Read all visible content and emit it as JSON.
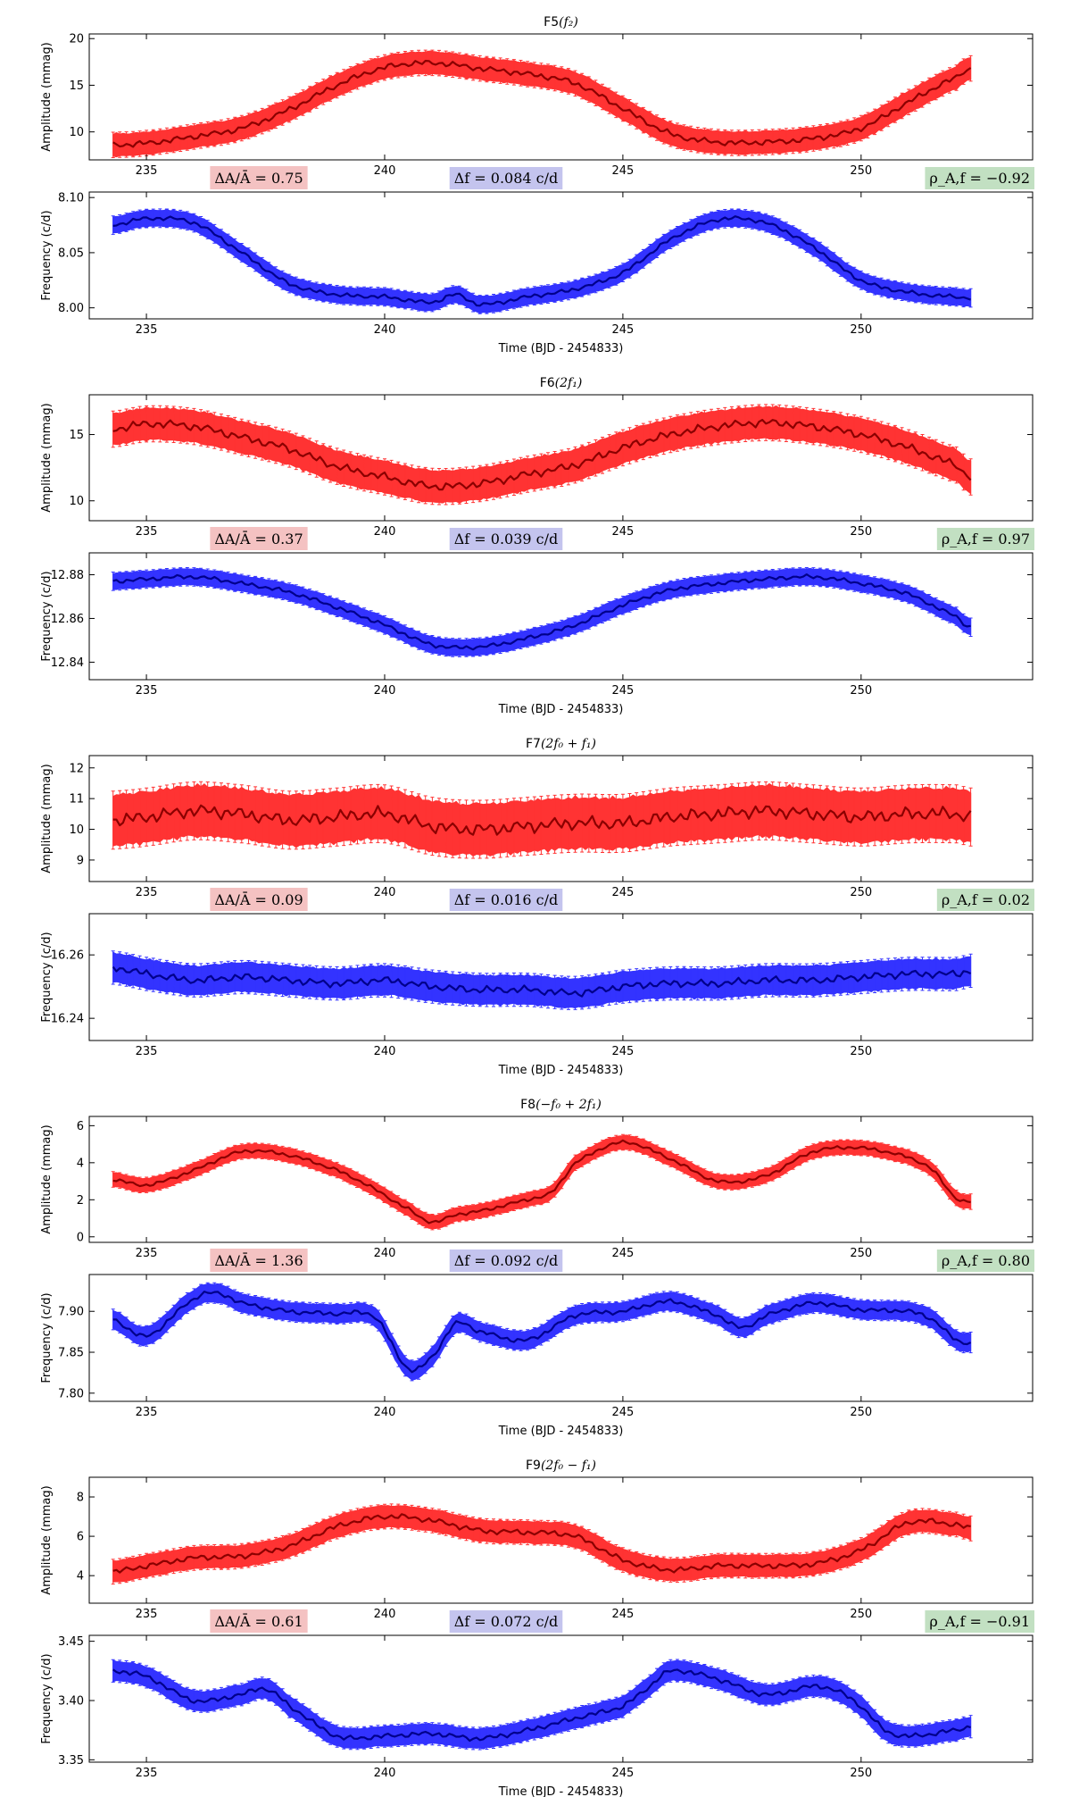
{
  "figure": {
    "xlabel": "Time (BJD - 2454833)",
    "xlim": [
      233.8,
      253.6
    ],
    "xticks": [
      235,
      240,
      245,
      250
    ],
    "colors": {
      "amplitude": "#ff3333",
      "amplitude_line": "#8b0000",
      "frequency": "#3333ff",
      "frequency_line": "#00008b",
      "box_amp": "#f4c2c2",
      "box_freq": "#c4c4ee",
      "box_rho": "#c2e0c2"
    }
  },
  "chart_data": [
    {
      "type": "line",
      "title_main": "F5",
      "title_sub": "(f₂)",
      "stat_amp": "ΔA/Ā = 0.75",
      "stat_freq": "Δf = 0.084 c/d",
      "stat_rho": "ρ_A,f = −0.92",
      "amplitude": {
        "ylabel": "Amplitude (mmag)",
        "ylim": [
          7,
          20.5
        ],
        "yticks": [
          "10",
          "15",
          "20"
        ],
        "ytick_values": [
          10,
          15,
          20
        ],
        "band": 1.3,
        "x": [
          234.3,
          235,
          236,
          237,
          238,
          239,
          240,
          241,
          242,
          243,
          244,
          245,
          246,
          247,
          248,
          249,
          250,
          251,
          252,
          252.3
        ],
        "y": [
          8.6,
          8.8,
          9.5,
          10.4,
          12.4,
          15.0,
          16.9,
          17.4,
          16.8,
          16.2,
          15.2,
          12.5,
          9.8,
          8.9,
          8.9,
          9.3,
          10.4,
          13.2,
          15.8,
          16.8
        ]
      },
      "frequency": {
        "ylabel": "Frequency (c/d)",
        "ylim": [
          7.99,
          8.105
        ],
        "yticks": [
          "8.00",
          "8.05",
          "8.10"
        ],
        "ytick_values": [
          8.0,
          8.05,
          8.1
        ],
        "band": 0.008,
        "x": [
          234.3,
          235,
          236,
          237,
          238,
          239,
          240,
          240.5,
          241,
          241.5,
          242,
          243,
          244,
          245,
          246,
          247,
          248,
          249,
          250,
          251,
          252,
          252.3
        ],
        "y": [
          8.075,
          8.081,
          8.077,
          8.05,
          8.022,
          8.012,
          8.01,
          8.007,
          8.005,
          8.012,
          8.003,
          8.01,
          8.017,
          8.032,
          8.062,
          8.08,
          8.077,
          8.055,
          8.025,
          8.014,
          8.01,
          8.009
        ]
      }
    },
    {
      "type": "line",
      "title_main": "F6",
      "title_sub": "(2f₁)",
      "stat_amp": "ΔA/Ā = 0.37",
      "stat_freq": "Δf = 0.039 c/d",
      "stat_rho": "ρ_A,f = 0.97",
      "amplitude": {
        "ylabel": "Amplitude (mmag)",
        "ylim": [
          8.5,
          18
        ],
        "yticks": [
          "10",
          "15"
        ],
        "ytick_values": [
          10,
          15
        ],
        "band": 1.3,
        "x": [
          234.3,
          235,
          236,
          237,
          238,
          239,
          240,
          241,
          242,
          243,
          244,
          245,
          246,
          247,
          248,
          249,
          250,
          251,
          252,
          252.3
        ],
        "y": [
          15.4,
          15.8,
          15.6,
          14.8,
          13.9,
          12.6,
          11.8,
          11.1,
          11.3,
          12.0,
          12.7,
          14.0,
          15.0,
          15.6,
          15.9,
          15.6,
          15.0,
          14.0,
          12.7,
          11.8
        ]
      },
      "frequency": {
        "ylabel": "Frequency (c/d)",
        "ylim": [
          12.832,
          12.89
        ],
        "yticks": [
          "12.84",
          "12.86",
          "12.88"
        ],
        "ytick_values": [
          12.84,
          12.86,
          12.88
        ],
        "band": 0.004,
        "x": [
          234.3,
          235,
          236,
          237,
          238,
          239,
          240,
          241,
          242,
          243,
          244,
          245,
          246,
          247,
          248,
          249,
          250,
          251,
          252,
          252.3
        ],
        "y": [
          12.877,
          12.878,
          12.879,
          12.876,
          12.872,
          12.865,
          12.857,
          12.848,
          12.847,
          12.851,
          12.857,
          12.866,
          12.873,
          12.876,
          12.878,
          12.879,
          12.876,
          12.871,
          12.861,
          12.856
        ]
      }
    },
    {
      "type": "line",
      "title_main": "F7",
      "title_sub": "(2f₀ + f₁)",
      "stat_amp": "ΔA/Ā = 0.09",
      "stat_freq": "Δf = 0.016 c/d",
      "stat_rho": "ρ_A,f = 0.02",
      "amplitude": {
        "ylabel": "Amplitude (mmag)",
        "ylim": [
          8.3,
          12.4
        ],
        "yticks": [
          "9",
          "10",
          "11",
          "12"
        ],
        "ytick_values": [
          9,
          10,
          11,
          12
        ],
        "band": 0.9,
        "x": [
          234.3,
          235,
          236,
          237,
          238,
          239,
          240,
          241,
          242,
          243,
          244,
          245,
          246,
          247,
          248,
          249,
          250,
          251,
          252,
          252.3
        ],
        "y": [
          10.3,
          10.4,
          10.6,
          10.5,
          10.3,
          10.4,
          10.5,
          10.1,
          10.0,
          10.1,
          10.2,
          10.2,
          10.4,
          10.5,
          10.6,
          10.5,
          10.4,
          10.5,
          10.5,
          10.4
        ]
      },
      "frequency": {
        "ylabel": "Frequency (c/d)",
        "ylim": [
          16.233,
          16.273
        ],
        "yticks": [
          "16.24",
          "16.26"
        ],
        "ytick_values": [
          16.24,
          16.26
        ],
        "band": 0.005,
        "x": [
          234.3,
          235,
          236,
          237,
          238,
          239,
          240,
          241,
          242,
          243,
          244,
          245,
          246,
          247,
          248,
          249,
          250,
          251,
          252,
          252.3
        ],
        "y": [
          16.256,
          16.254,
          16.252,
          16.253,
          16.252,
          16.251,
          16.252,
          16.25,
          16.249,
          16.249,
          16.248,
          16.25,
          16.251,
          16.251,
          16.252,
          16.252,
          16.253,
          16.254,
          16.254,
          16.255
        ]
      }
    },
    {
      "type": "line",
      "title_main": "F8",
      "title_sub": "(−f₀ + 2f₁)",
      "stat_amp": "ΔA/Ā = 1.36",
      "stat_freq": "Δf = 0.092 c/d",
      "stat_rho": "ρ_A,f = 0.80",
      "amplitude": {
        "ylabel": "Amplitude (mmag)",
        "ylim": [
          -0.3,
          6.5
        ],
        "yticks": [
          "0",
          "2",
          "4",
          "6"
        ],
        "ytick_values": [
          0,
          2,
          4,
          6
        ],
        "band": 0.4,
        "x": [
          234.3,
          235,
          236,
          237,
          238,
          239,
          239.7,
          240.5,
          241,
          241.5,
          242,
          243,
          243.5,
          244,
          245,
          246,
          247,
          248,
          249,
          250,
          251,
          251.5,
          252,
          252.3
        ],
        "y": [
          3.1,
          2.8,
          3.6,
          4.6,
          4.4,
          3.6,
          2.7,
          1.5,
          0.8,
          1.2,
          1.4,
          2.0,
          2.4,
          4.0,
          5.1,
          4.2,
          3.0,
          3.3,
          4.6,
          4.8,
          4.3,
          3.6,
          2.1,
          1.9
        ]
      },
      "frequency": {
        "ylabel": "Frequency (c/d)",
        "ylim": [
          7.79,
          7.945
        ],
        "yticks": [
          "7.80",
          "7.85",
          "7.90"
        ],
        "ytick_values": [
          7.8,
          7.85,
          7.9
        ],
        "band": 0.012,
        "x": [
          234.3,
          235,
          236,
          236.5,
          237,
          238,
          239,
          239.8,
          240.5,
          241,
          241.5,
          242,
          243,
          244,
          245,
          246,
          247,
          247.5,
          248,
          249,
          250,
          251,
          251.5,
          252,
          252.3
        ],
        "y": [
          7.89,
          7.87,
          7.915,
          7.922,
          7.91,
          7.9,
          7.897,
          7.893,
          7.83,
          7.845,
          7.885,
          7.875,
          7.865,
          7.895,
          7.9,
          7.912,
          7.895,
          7.88,
          7.895,
          7.91,
          7.902,
          7.9,
          7.89,
          7.865,
          7.862
        ]
      }
    },
    {
      "type": "line",
      "title_main": "F9",
      "title_sub": "(2f₀ − f₁)",
      "stat_amp": "ΔA/Ā = 0.61",
      "stat_freq": "Δf = 0.072 c/d",
      "stat_rho": "ρ_A,f = −0.91",
      "amplitude": {
        "ylabel": "Amplitude (mmag)",
        "ylim": [
          2.6,
          9
        ],
        "yticks": [
          "4",
          "6",
          "8"
        ],
        "ytick_values": [
          4,
          6,
          8
        ],
        "band": 0.6,
        "x": [
          234.3,
          235,
          236,
          237,
          238,
          239,
          240,
          241,
          242,
          243,
          244,
          245,
          246,
          247,
          248,
          249,
          250,
          251,
          252,
          252.3
        ],
        "y": [
          4.2,
          4.5,
          4.9,
          5.0,
          5.5,
          6.5,
          7.0,
          6.8,
          6.3,
          6.2,
          6.0,
          4.8,
          4.3,
          4.5,
          4.5,
          4.6,
          5.3,
          6.7,
          6.6,
          6.4
        ]
      },
      "frequency": {
        "ylabel": "Frequency (c/d)",
        "ylim": [
          3.348,
          3.455
        ],
        "yticks": [
          "3.35",
          "3.40",
          "3.45"
        ],
        "ytick_values": [
          3.35,
          3.4,
          3.45
        ],
        "band": 0.009,
        "x": [
          234.3,
          235,
          236,
          237,
          237.5,
          238,
          239,
          240,
          241,
          242,
          243,
          244,
          245,
          245.5,
          246,
          247,
          248,
          249,
          249.5,
          250,
          250.5,
          251,
          252,
          252.3
        ],
        "y": [
          3.425,
          3.42,
          3.4,
          3.405,
          3.41,
          3.395,
          3.37,
          3.37,
          3.372,
          3.368,
          3.375,
          3.385,
          3.395,
          3.41,
          3.425,
          3.418,
          3.405,
          3.412,
          3.408,
          3.395,
          3.375,
          3.37,
          3.375,
          3.378
        ]
      }
    }
  ]
}
